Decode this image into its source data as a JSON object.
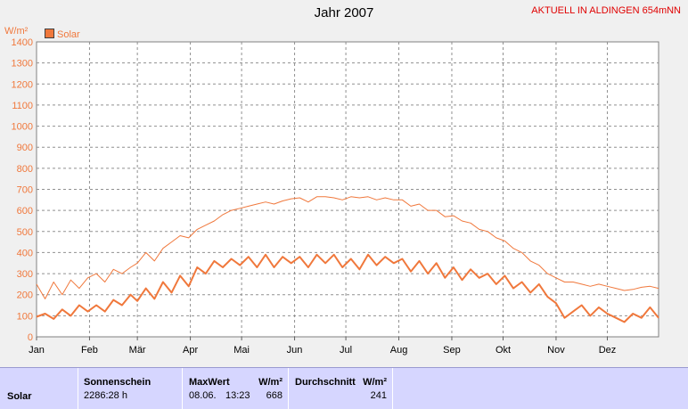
{
  "chart_data": {
    "type": "line",
    "title": "Jahr 2007",
    "station_label": "AKTUELL IN ALDINGEN 654mNN",
    "ylabel": "W/m²",
    "ylim": [
      0,
      1400
    ],
    "yticks": [
      0,
      100,
      200,
      300,
      400,
      500,
      600,
      700,
      800,
      900,
      1000,
      1100,
      1200,
      1300,
      1400
    ],
    "xlim": [
      1,
      365
    ],
    "xticks": [
      {
        "label": "Jan",
        "day": 1
      },
      {
        "label": "Feb",
        "day": 32
      },
      {
        "label": "Mär",
        "day": 60
      },
      {
        "label": "Apr",
        "day": 91
      },
      {
        "label": "Mai",
        "day": 121
      },
      {
        "label": "Jun",
        "day": 152
      },
      {
        "label": "Jul",
        "day": 182
      },
      {
        "label": "Aug",
        "day": 213
      },
      {
        "label": "Sep",
        "day": 244
      },
      {
        "label": "Okt",
        "day": 274
      },
      {
        "label": "Nov",
        "day": 305
      },
      {
        "label": "Dez",
        "day": 335
      }
    ],
    "grid": true,
    "legend_position": "top-left",
    "series": [
      {
        "name": "Solar",
        "color": "#f0783c",
        "points": [
          [
            1,
            95
          ],
          [
            6,
            110
          ],
          [
            11,
            85
          ],
          [
            16,
            130
          ],
          [
            21,
            100
          ],
          [
            26,
            150
          ],
          [
            31,
            120
          ],
          [
            36,
            150
          ],
          [
            41,
            120
          ],
          [
            46,
            175
          ],
          [
            51,
            150
          ],
          [
            56,
            200
          ],
          [
            60,
            170
          ],
          [
            65,
            230
          ],
          [
            70,
            180
          ],
          [
            75,
            260
          ],
          [
            80,
            210
          ],
          [
            85,
            290
          ],
          [
            90,
            240
          ],
          [
            95,
            330
          ],
          [
            100,
            300
          ],
          [
            105,
            360
          ],
          [
            110,
            330
          ],
          [
            115,
            370
          ],
          [
            120,
            340
          ],
          [
            125,
            380
          ],
          [
            130,
            330
          ],
          [
            135,
            390
          ],
          [
            140,
            330
          ],
          [
            145,
            380
          ],
          [
            150,
            350
          ],
          [
            155,
            380
          ],
          [
            160,
            330
          ],
          [
            165,
            390
          ],
          [
            170,
            350
          ],
          [
            175,
            390
          ],
          [
            180,
            330
          ],
          [
            185,
            370
          ],
          [
            190,
            320
          ],
          [
            195,
            390
          ],
          [
            200,
            340
          ],
          [
            205,
            380
          ],
          [
            210,
            350
          ],
          [
            215,
            370
          ],
          [
            220,
            310
          ],
          [
            225,
            360
          ],
          [
            230,
            300
          ],
          [
            235,
            350
          ],
          [
            240,
            280
          ],
          [
            245,
            330
          ],
          [
            250,
            270
          ],
          [
            255,
            320
          ],
          [
            260,
            280
          ],
          [
            265,
            300
          ],
          [
            270,
            250
          ],
          [
            275,
            290
          ],
          [
            280,
            230
          ],
          [
            285,
            260
          ],
          [
            290,
            210
          ],
          [
            295,
            250
          ],
          [
            300,
            190
          ],
          [
            305,
            160
          ],
          [
            310,
            90
          ],
          [
            315,
            120
          ],
          [
            320,
            150
          ],
          [
            325,
            100
          ],
          [
            330,
            140
          ],
          [
            335,
            110
          ],
          [
            340,
            90
          ],
          [
            345,
            70
          ],
          [
            350,
            110
          ],
          [
            355,
            90
          ],
          [
            360,
            140
          ],
          [
            365,
            90
          ]
        ]
      },
      {
        "name": "",
        "color": "#f0783c",
        "points": [
          [
            1,
            250
          ],
          [
            6,
            180
          ],
          [
            11,
            260
          ],
          [
            16,
            200
          ],
          [
            21,
            270
          ],
          [
            26,
            230
          ],
          [
            31,
            280
          ],
          [
            36,
            300
          ],
          [
            41,
            260
          ],
          [
            46,
            320
          ],
          [
            51,
            300
          ],
          [
            56,
            330
          ],
          [
            60,
            350
          ],
          [
            65,
            400
          ],
          [
            70,
            360
          ],
          [
            75,
            420
          ],
          [
            80,
            450
          ],
          [
            85,
            480
          ],
          [
            90,
            470
          ],
          [
            95,
            510
          ],
          [
            100,
            530
          ],
          [
            105,
            550
          ],
          [
            110,
            580
          ],
          [
            115,
            600
          ],
          [
            120,
            610
          ],
          [
            125,
            620
          ],
          [
            130,
            630
          ],
          [
            135,
            640
          ],
          [
            140,
            630
          ],
          [
            145,
            645
          ],
          [
            150,
            655
          ],
          [
            155,
            660
          ],
          [
            160,
            640
          ],
          [
            165,
            665
          ],
          [
            170,
            665
          ],
          [
            175,
            660
          ],
          [
            180,
            650
          ],
          [
            185,
            665
          ],
          [
            190,
            660
          ],
          [
            195,
            665
          ],
          [
            200,
            650
          ],
          [
            205,
            660
          ],
          [
            210,
            650
          ],
          [
            215,
            650
          ],
          [
            220,
            620
          ],
          [
            225,
            630
          ],
          [
            230,
            600
          ],
          [
            235,
            600
          ],
          [
            240,
            570
          ],
          [
            245,
            575
          ],
          [
            250,
            550
          ],
          [
            255,
            540
          ],
          [
            260,
            510
          ],
          [
            265,
            500
          ],
          [
            270,
            470
          ],
          [
            275,
            455
          ],
          [
            280,
            420
          ],
          [
            285,
            400
          ],
          [
            290,
            360
          ],
          [
            295,
            340
          ],
          [
            300,
            300
          ],
          [
            305,
            280
          ],
          [
            310,
            260
          ],
          [
            315,
            260
          ],
          [
            320,
            250
          ],
          [
            325,
            240
          ],
          [
            330,
            250
          ],
          [
            335,
            240
          ],
          [
            340,
            230
          ],
          [
            345,
            220
          ],
          [
            350,
            225
          ],
          [
            355,
            235
          ],
          [
            360,
            240
          ],
          [
            365,
            230
          ]
        ]
      }
    ]
  },
  "stats_panel": {
    "row_label": "Solar",
    "sunshine": {
      "header": "Sonnenschein",
      "value": "2286:28 h"
    },
    "max": {
      "header": "MaxWert",
      "unit": "W/m²",
      "date": "08.06.",
      "time": "13:23",
      "value": "668"
    },
    "avg": {
      "header": "Durchschnitt",
      "unit": "W/m²",
      "value": "241"
    }
  }
}
